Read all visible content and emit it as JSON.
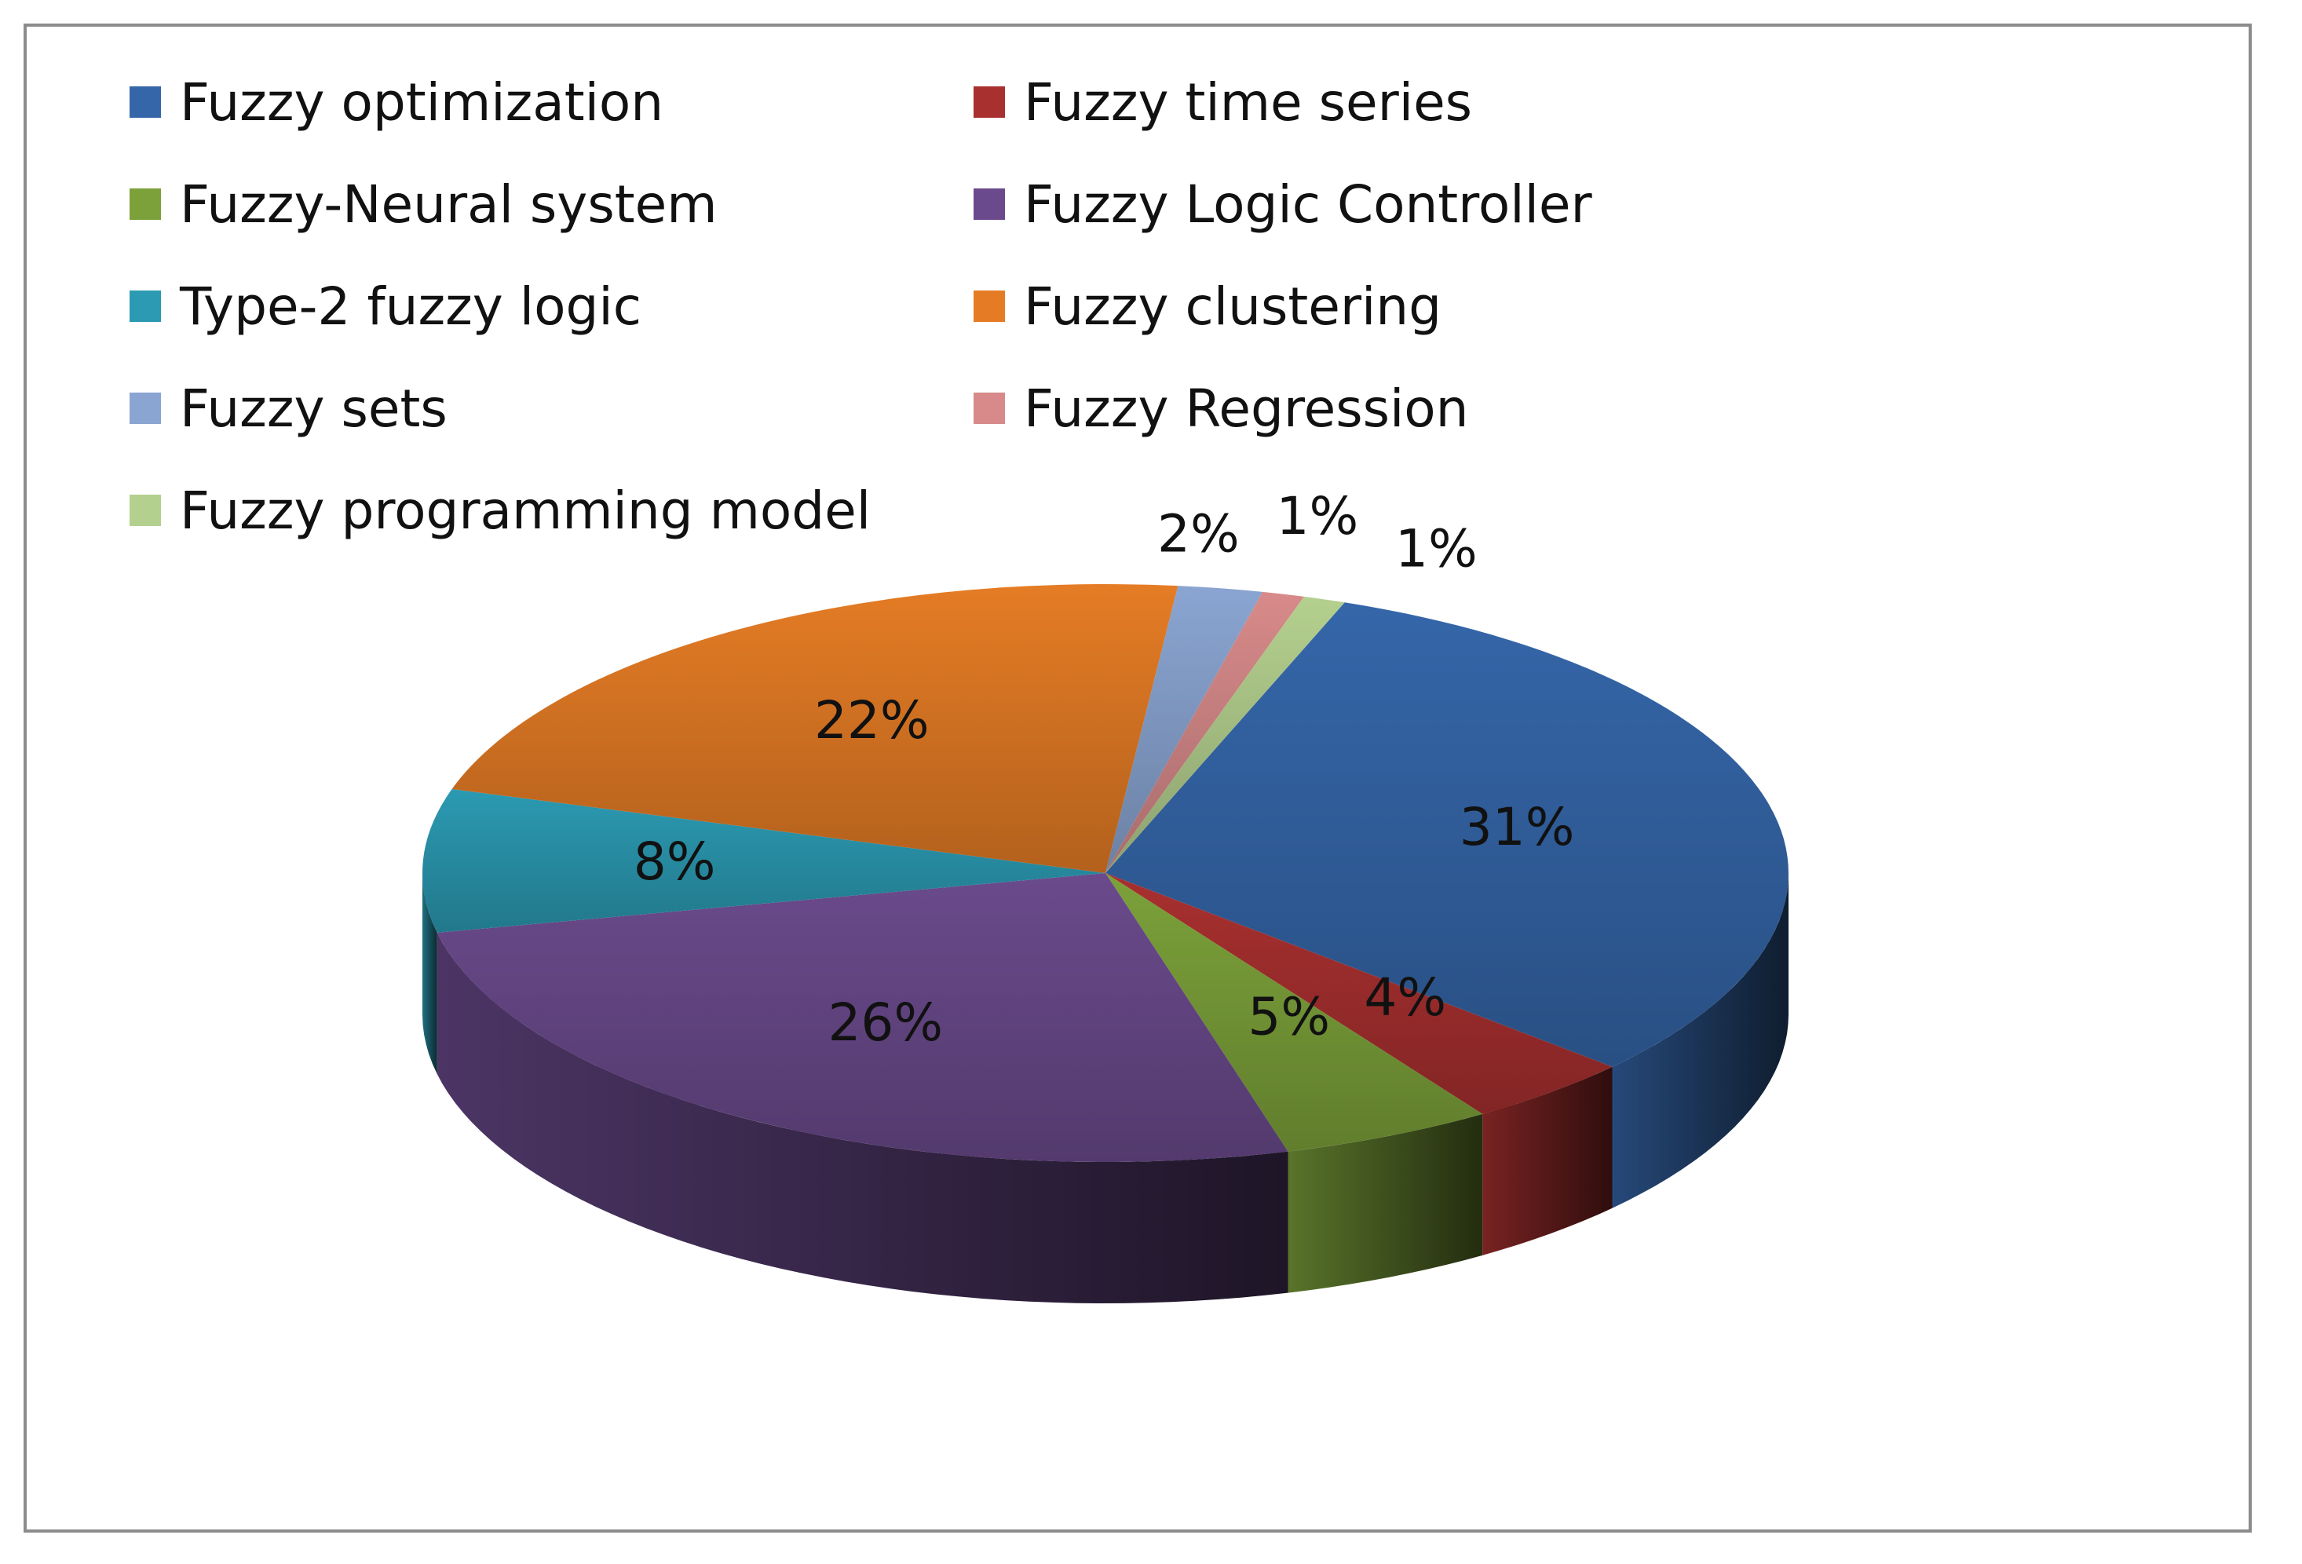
{
  "chart_data": {
    "type": "pie",
    "variant": "3d",
    "legend_position": "top-left",
    "categories": [
      "Fuzzy optimization",
      "Fuzzy time series",
      "Fuzzy-Neural system",
      "Fuzzy Logic Controller",
      "Type-2 fuzzy logic",
      "Fuzzy clustering",
      "Fuzzy sets",
      "Fuzzy Regression",
      "Fuzzy programming model"
    ],
    "values": [
      31,
      4,
      5,
      26,
      8,
      22,
      2,
      1,
      1
    ],
    "data_labels": [
      "31%",
      "4%",
      "5%",
      "26%",
      "8%",
      "22%",
      "2%",
      "1%",
      "1%"
    ],
    "colors": [
      "#3566a9",
      "#a8302f",
      "#7ca13a",
      "#6a4a8c",
      "#2b9ab2",
      "#e57c25",
      "#8aa5d2",
      "#d88a8a",
      "#b4d08e"
    ]
  }
}
